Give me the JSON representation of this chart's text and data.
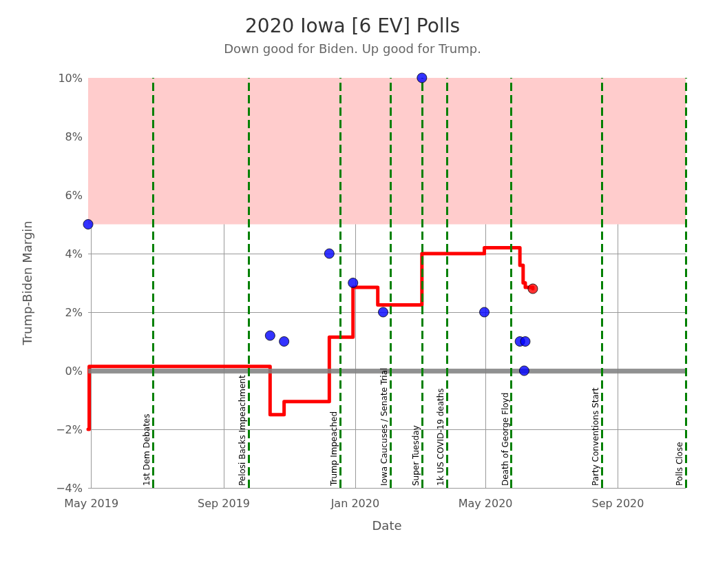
{
  "chart_data": {
    "type": "scatter",
    "title": "2020 Iowa [6 EV] Polls",
    "subtitle": "Down good for Biden. Up good for Trump.",
    "xlabel": "Date",
    "ylabel": "Trump-Biden Margin",
    "xlim": [
      "2019-04-28",
      "2020-11-03"
    ],
    "xticks": [
      {
        "value": "2019-05",
        "label": "May 2019"
      },
      {
        "value": "2019-09",
        "label": "Sep 2019"
      },
      {
        "value": "2020-01",
        "label": "Jan 2020"
      },
      {
        "value": "2020-05",
        "label": "May 2020"
      },
      {
        "value": "2020-09",
        "label": "Sep 2020"
      }
    ],
    "ylim": [
      -4,
      10
    ],
    "yticks": [
      {
        "value": -4,
        "label": "−4%"
      },
      {
        "value": -2,
        "label": "−2%"
      },
      {
        "value": 0,
        "label": "0%"
      },
      {
        "value": 2,
        "label": "2%"
      },
      {
        "value": 4,
        "label": "4%"
      },
      {
        "value": 6,
        "label": "6%"
      },
      {
        "value": 8,
        "label": "8%"
      },
      {
        "value": 10,
        "label": "10%"
      }
    ],
    "grid": true,
    "series": [
      {
        "color": "#0000ff",
        "marker": "circle",
        "x": [
          "2019-04-28",
          "2019-10-14",
          "2019-10-27",
          "2019-12-08",
          "2019-12-30",
          "2020-01-27",
          "2020-03-03",
          "2020-04-30",
          "2020-06-02",
          "2020-06-07",
          "2020-06-06"
        ],
        "values": [
          5,
          1.2,
          1,
          4,
          3,
          2,
          10,
          2,
          1,
          1,
          0
        ]
      },
      {
        "type": "step",
        "color": "#ff0000",
        "line_style": "solid",
        "x": [
          "2019-04-28",
          "2019-04-29",
          "2019-10-14",
          "2019-10-27",
          "2019-12-08",
          "2019-12-30",
          "2020-01-22",
          "2020-03-03",
          "2020-04-30",
          "2020-06-02",
          "2020-06-05",
          "2020-06-07",
          "2020-06-14"
        ],
        "values": [
          -2,
          0.15,
          -1.5,
          -1.05,
          1.15,
          2.85,
          2.25,
          4,
          4.2,
          3.6,
          3,
          2.85,
          2.8
        ]
      },
      {
        "type": "scatter",
        "color": "#ff0000",
        "marker": "circle",
        "x": [
          "2020-06-14"
        ],
        "values": [
          2.8
        ]
      }
    ],
    "bands": [
      {
        "axis": "y",
        "from": 5,
        "to": 10,
        "color": "#ffcccc"
      }
    ],
    "ref_lines": [
      {
        "axis": "y",
        "value": 0,
        "color": "#808080",
        "line_style": "solid"
      },
      {
        "axis": "x",
        "value": "2019-06-27",
        "label": "1st Dem Debates",
        "color": "#008000",
        "line_style": "dashed"
      },
      {
        "axis": "x",
        "value": "2019-09-24",
        "label": "Pelosi Backs Impeachment",
        "color": "#008000",
        "line_style": "dashed"
      },
      {
        "axis": "x",
        "value": "2019-12-18",
        "label": "Trump Impeached",
        "color": "#008000",
        "line_style": "dashed"
      },
      {
        "axis": "x",
        "value": "2020-02-03",
        "label": "Iowa Caucuses / Senate Trial",
        "color": "#008000",
        "line_style": "dashed"
      },
      {
        "axis": "x",
        "value": "2020-03-03",
        "label": "Super Tuesday",
        "color": "#008000",
        "line_style": "dashed"
      },
      {
        "axis": "x",
        "value": "2020-03-26",
        "label": "1k US COVID-19 deaths",
        "color": "#008000",
        "line_style": "dashed"
      },
      {
        "axis": "x",
        "value": "2020-05-25",
        "label": "Death of George Floyd",
        "color": "#008000",
        "line_style": "dashed"
      },
      {
        "axis": "x",
        "value": "2020-08-17",
        "label": "Party Conventions Start",
        "color": "#008000",
        "line_style": "dashed"
      },
      {
        "axis": "x",
        "value": "2020-11-03",
        "label": "Polls Close",
        "color": "#008000",
        "line_style": "dashed"
      }
    ]
  }
}
